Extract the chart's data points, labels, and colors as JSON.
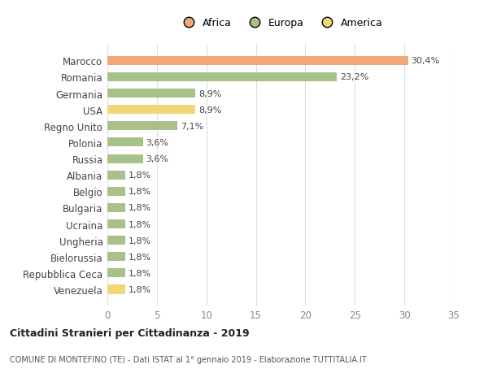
{
  "categories": [
    "Marocco",
    "Romania",
    "Germania",
    "USA",
    "Regno Unito",
    "Polonia",
    "Russia",
    "Albania",
    "Belgio",
    "Bulgaria",
    "Ucraina",
    "Ungheria",
    "Bielorussia",
    "Repubblica Ceca",
    "Venezuela"
  ],
  "values": [
    30.4,
    23.2,
    8.9,
    8.9,
    7.1,
    3.6,
    3.6,
    1.8,
    1.8,
    1.8,
    1.8,
    1.8,
    1.8,
    1.8,
    1.8
  ],
  "labels": [
    "30,4%",
    "23,2%",
    "8,9%",
    "8,9%",
    "7,1%",
    "3,6%",
    "3,6%",
    "1,8%",
    "1,8%",
    "1,8%",
    "1,8%",
    "1,8%",
    "1,8%",
    "1,8%",
    "1,8%"
  ],
  "continents": [
    "Africa",
    "Europa",
    "Europa",
    "America",
    "Europa",
    "Europa",
    "Europa",
    "Europa",
    "Europa",
    "Europa",
    "Europa",
    "Europa",
    "Europa",
    "Europa",
    "America"
  ],
  "colors": {
    "Africa": "#F0A878",
    "Europa": "#A8C08A",
    "America": "#F0D878"
  },
  "legend_labels": [
    "Africa",
    "Europa",
    "America"
  ],
  "legend_colors": [
    "#F0A878",
    "#A8C08A",
    "#F0D878"
  ],
  "title1": "Cittadini Stranieri per Cittadinanza - 2019",
  "title2": "COMUNE DI MONTEFINO (TE) - Dati ISTAT al 1° gennaio 2019 - Elaborazione TUTTITALIA.IT",
  "xlim": [
    0,
    35
  ],
  "xticks": [
    0,
    5,
    10,
    15,
    20,
    25,
    30,
    35
  ],
  "background_color": "#ffffff",
  "grid_color": "#dddddd",
  "bar_height": 0.55,
  "label_fontsize": 8.0,
  "ytick_fontsize": 8.5,
  "xtick_fontsize": 8.5
}
